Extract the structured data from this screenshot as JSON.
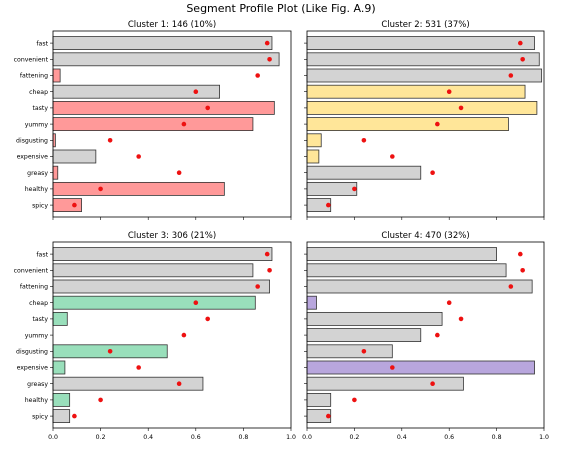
{
  "figure": {
    "title": "Segment Profile Plot (Like Fig. A.9)",
    "colors": {
      "neutral_bar": "#d3d3d3",
      "bar_edge": "#333333",
      "marker": "#ee1111",
      "frame": "#000000"
    }
  },
  "chart_data": [
    {
      "type": "bar",
      "orientation": "horizontal",
      "title": "Cluster 1: 146 (10%)",
      "categories": [
        "fast",
        "convenient",
        "fattening",
        "cheap",
        "tasty",
        "yummy",
        "disgusting",
        "expensive",
        "greasy",
        "healthy",
        "spicy"
      ],
      "values": [
        0.92,
        0.95,
        0.03,
        0.7,
        0.93,
        0.84,
        0.01,
        0.18,
        0.02,
        0.72,
        0.12
      ],
      "overall_mean": [
        0.9,
        0.91,
        0.86,
        0.6,
        0.65,
        0.55,
        0.24,
        0.36,
        0.53,
        0.2,
        0.09
      ],
      "highlighted": [
        false,
        false,
        true,
        false,
        true,
        true,
        true,
        false,
        true,
        true,
        true
      ],
      "highlight_color": "#ff9999",
      "xlim": [
        0,
        1.0
      ],
      "xticks": [
        "0.0",
        "0.2",
        "0.4",
        "0.6",
        "0.8",
        "1.0"
      ],
      "show_x_ticklabels": false,
      "show_y_ticklabels": true
    },
    {
      "type": "bar",
      "orientation": "horizontal",
      "title": "Cluster 2: 531 (37%)",
      "categories": [
        "fast",
        "convenient",
        "fattening",
        "cheap",
        "tasty",
        "yummy",
        "disgusting",
        "expensive",
        "greasy",
        "healthy",
        "spicy"
      ],
      "values": [
        0.96,
        0.98,
        0.99,
        0.92,
        0.97,
        0.85,
        0.06,
        0.05,
        0.48,
        0.21,
        0.1
      ],
      "overall_mean": [
        0.9,
        0.91,
        0.86,
        0.6,
        0.65,
        0.55,
        0.24,
        0.36,
        0.53,
        0.2,
        0.09
      ],
      "highlighted": [
        false,
        false,
        false,
        true,
        true,
        true,
        true,
        true,
        false,
        false,
        false
      ],
      "highlight_color": "#ffe699",
      "xlim": [
        0,
        1.0
      ],
      "xticks": [
        "0.0",
        "0.2",
        "0.4",
        "0.6",
        "0.8",
        "1.0"
      ],
      "show_x_ticklabels": false,
      "show_y_ticklabels": false
    },
    {
      "type": "bar",
      "orientation": "horizontal",
      "title": "Cluster 3: 306 (21%)",
      "categories": [
        "fast",
        "convenient",
        "fattening",
        "cheap",
        "tasty",
        "yummy",
        "disgusting",
        "expensive",
        "greasy",
        "healthy",
        "spicy"
      ],
      "values": [
        0.92,
        0.84,
        0.91,
        0.85,
        0.06,
        0.0,
        0.48,
        0.05,
        0.63,
        0.07,
        0.07
      ],
      "overall_mean": [
        0.9,
        0.91,
        0.86,
        0.6,
        0.65,
        0.55,
        0.24,
        0.36,
        0.53,
        0.2,
        0.09
      ],
      "highlighted": [
        false,
        false,
        false,
        true,
        true,
        true,
        true,
        true,
        false,
        true,
        false
      ],
      "highlight_color": "#99dfbb",
      "xlim": [
        0,
        1.0
      ],
      "xticks": [
        "0.0",
        "0.2",
        "0.4",
        "0.6",
        "0.8",
        "1.0"
      ],
      "show_x_ticklabels": true,
      "show_y_ticklabels": true
    },
    {
      "type": "bar",
      "orientation": "horizontal",
      "title": "Cluster 4: 470 (32%)",
      "categories": [
        "fast",
        "convenient",
        "fattening",
        "cheap",
        "tasty",
        "yummy",
        "disgusting",
        "expensive",
        "greasy",
        "healthy",
        "spicy"
      ],
      "values": [
        0.8,
        0.84,
        0.95,
        0.04,
        0.57,
        0.48,
        0.36,
        0.96,
        0.66,
        0.1,
        0.1
      ],
      "overall_mean": [
        0.9,
        0.91,
        0.86,
        0.6,
        0.65,
        0.55,
        0.24,
        0.36,
        0.53,
        0.2,
        0.09
      ],
      "highlighted": [
        false,
        false,
        false,
        true,
        false,
        false,
        false,
        true,
        false,
        false,
        false
      ],
      "highlight_color": "#b8a6dd",
      "xlim": [
        0,
        1.0
      ],
      "xticks": [
        "0.0",
        "0.2",
        "0.4",
        "0.6",
        "0.8",
        "1.0"
      ],
      "show_x_ticklabels": true,
      "show_y_ticklabels": false
    }
  ]
}
